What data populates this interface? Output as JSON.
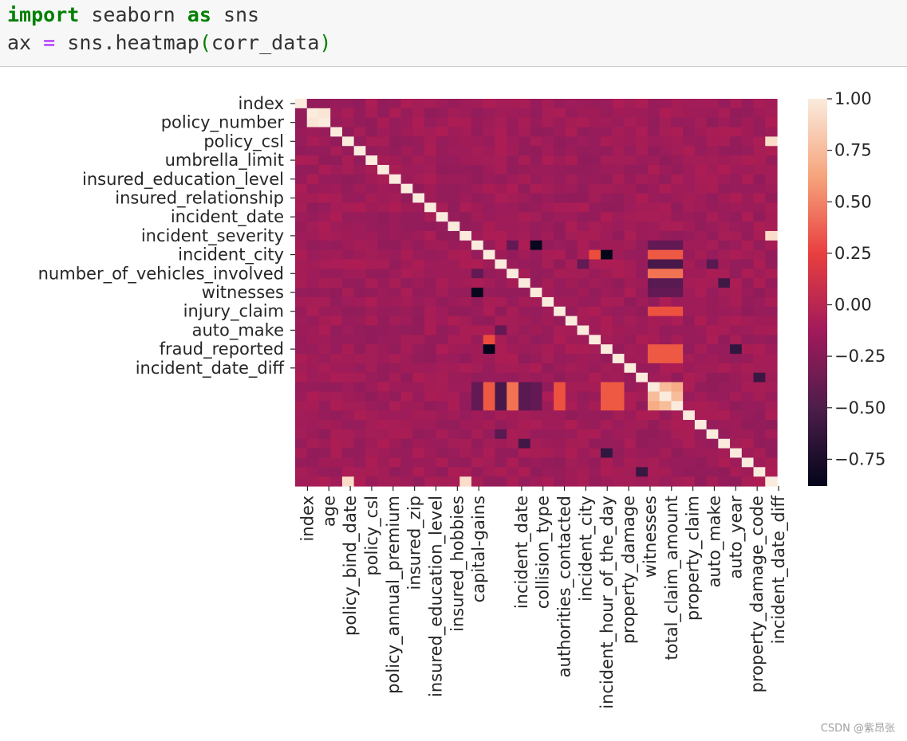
{
  "code_cell": {
    "line1": {
      "keyword1": "import",
      "module": " seaborn ",
      "keyword2": "as",
      "alias": " sns"
    },
    "line2": {
      "lhs": "ax ",
      "op": "=",
      "call": " sns.heatmap",
      "open": "(",
      "arg": "corr_data",
      "close": ")"
    }
  },
  "watermark": "CSDN @紫昂张",
  "colors": {
    "code_bg": "#f7f7f7",
    "keyword": "#008000",
    "operator": "#aa22ff",
    "colormap": "rocket"
  },
  "chart_data": {
    "type": "heatmap",
    "title": "",
    "n": 41,
    "y_tick_labels": [
      "index",
      "policy_number",
      "policy_csl",
      "umbrella_limit",
      "insured_education_level",
      "insured_relationship",
      "incident_date",
      "incident_severity",
      "incident_city",
      "number_of_vehicles_involved",
      "witnesses",
      "injury_claim",
      "auto_make",
      "fraud_reported",
      "incident_date_diff"
    ],
    "y_tick_rows": [
      0,
      2,
      4,
      6,
      8,
      10,
      12,
      14,
      16,
      18,
      20,
      22,
      24,
      26,
      28
    ],
    "x_tick_labels": [
      "index",
      "age",
      "policy_bind_date",
      "policy_csl",
      "policy_annual_premium",
      "insured_zip",
      "insured_education_level",
      "insured_hobbies",
      "capital-gains",
      "incident_date",
      "collision_type",
      "authorities_contacted",
      "incident_city",
      "incident_hour_of_the_day",
      "property_damage",
      "witnesses",
      "total_claim_amount",
      "property_claim",
      "auto_make",
      "auto_year",
      "property_damage_code",
      "incident_date_diff"
    ],
    "x_tick_cols": [
      0,
      1,
      2,
      3,
      4,
      5,
      6,
      7,
      8,
      10,
      11,
      12,
      13,
      14,
      15,
      16,
      17,
      18,
      19,
      20,
      21,
      22
    ],
    "colorbar": {
      "vmin": -0.88,
      "vmax": 1.0,
      "ticks": [
        "1.00",
        "0.75",
        "0.50",
        "0.25",
        "0.00",
        "−0.25",
        "−0.50",
        "−0.75"
      ],
      "tick_values": [
        1.0,
        0.75,
        0.5,
        0.25,
        0.0,
        -0.25,
        -0.5,
        -0.75
      ]
    },
    "notable_correlations": [
      {
        "a": "index",
        "b": "policy_number",
        "value": 1.0
      },
      {
        "a": "policy_bind_date",
        "b": "incident_date_diff",
        "value": 0.95
      },
      {
        "a": "incident_date",
        "b": "incident_date_diff",
        "value": 0.95
      },
      {
        "a": "incident_severity",
        "b": "number_of_vehicles_involved",
        "value": -0.88
      },
      {
        "a": "total_claim_amount",
        "b": "injury_claim",
        "value": 0.85
      },
      {
        "a": "total_claim_amount",
        "b": "property_claim",
        "value": 0.8
      },
      {
        "a": "injury_claim",
        "b": "property_claim",
        "value": 0.6
      },
      {
        "a": "collision_type",
        "b": "total_claim_amount",
        "value": 0.55
      },
      {
        "a": "incident_hour_of_the_day",
        "b": "total_claim_amount",
        "value": 0.4
      },
      {
        "a": "incident_severity",
        "b": "total_claim_amount",
        "value": -0.45
      },
      {
        "a": "property_damage",
        "b": "fraud_reported",
        "value": -0.6
      }
    ]
  }
}
